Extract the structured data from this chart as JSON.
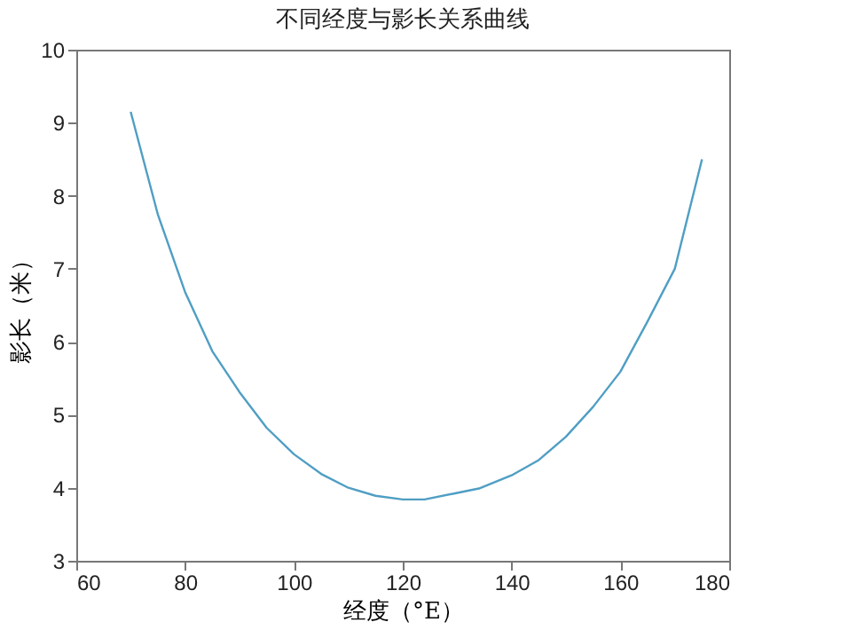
{
  "chart_data": {
    "type": "line",
    "title": "不同经度与影长关系曲线",
    "xlabel": "经度（°E）",
    "ylabel": "影长（米）",
    "x": [
      70,
      75,
      80,
      85,
      90,
      95,
      100,
      105,
      110,
      115,
      120,
      124,
      130,
      134,
      140,
      145,
      150,
      155,
      160,
      165,
      170,
      175
    ],
    "series": [
      {
        "color": "#4f9ec4",
        "values": [
          9.15,
          7.74,
          6.68,
          5.87,
          5.31,
          4.82,
          4.46,
          4.19,
          4.0,
          3.89,
          3.84,
          3.84,
          3.93,
          3.99,
          4.17,
          4.38,
          4.7,
          5.11,
          5.59,
          6.28,
          7.0,
          8.5
        ]
      }
    ],
    "xlim": [
      60,
      180
    ],
    "xticks": [
      60,
      80,
      100,
      120,
      140,
      160,
      180
    ],
    "ylim": [
      3,
      10
    ],
    "yticks": [
      3,
      4,
      5,
      6,
      7,
      8,
      9,
      10
    ],
    "grid": false,
    "legend": false,
    "marker": "none",
    "line_style": "solid"
  }
}
